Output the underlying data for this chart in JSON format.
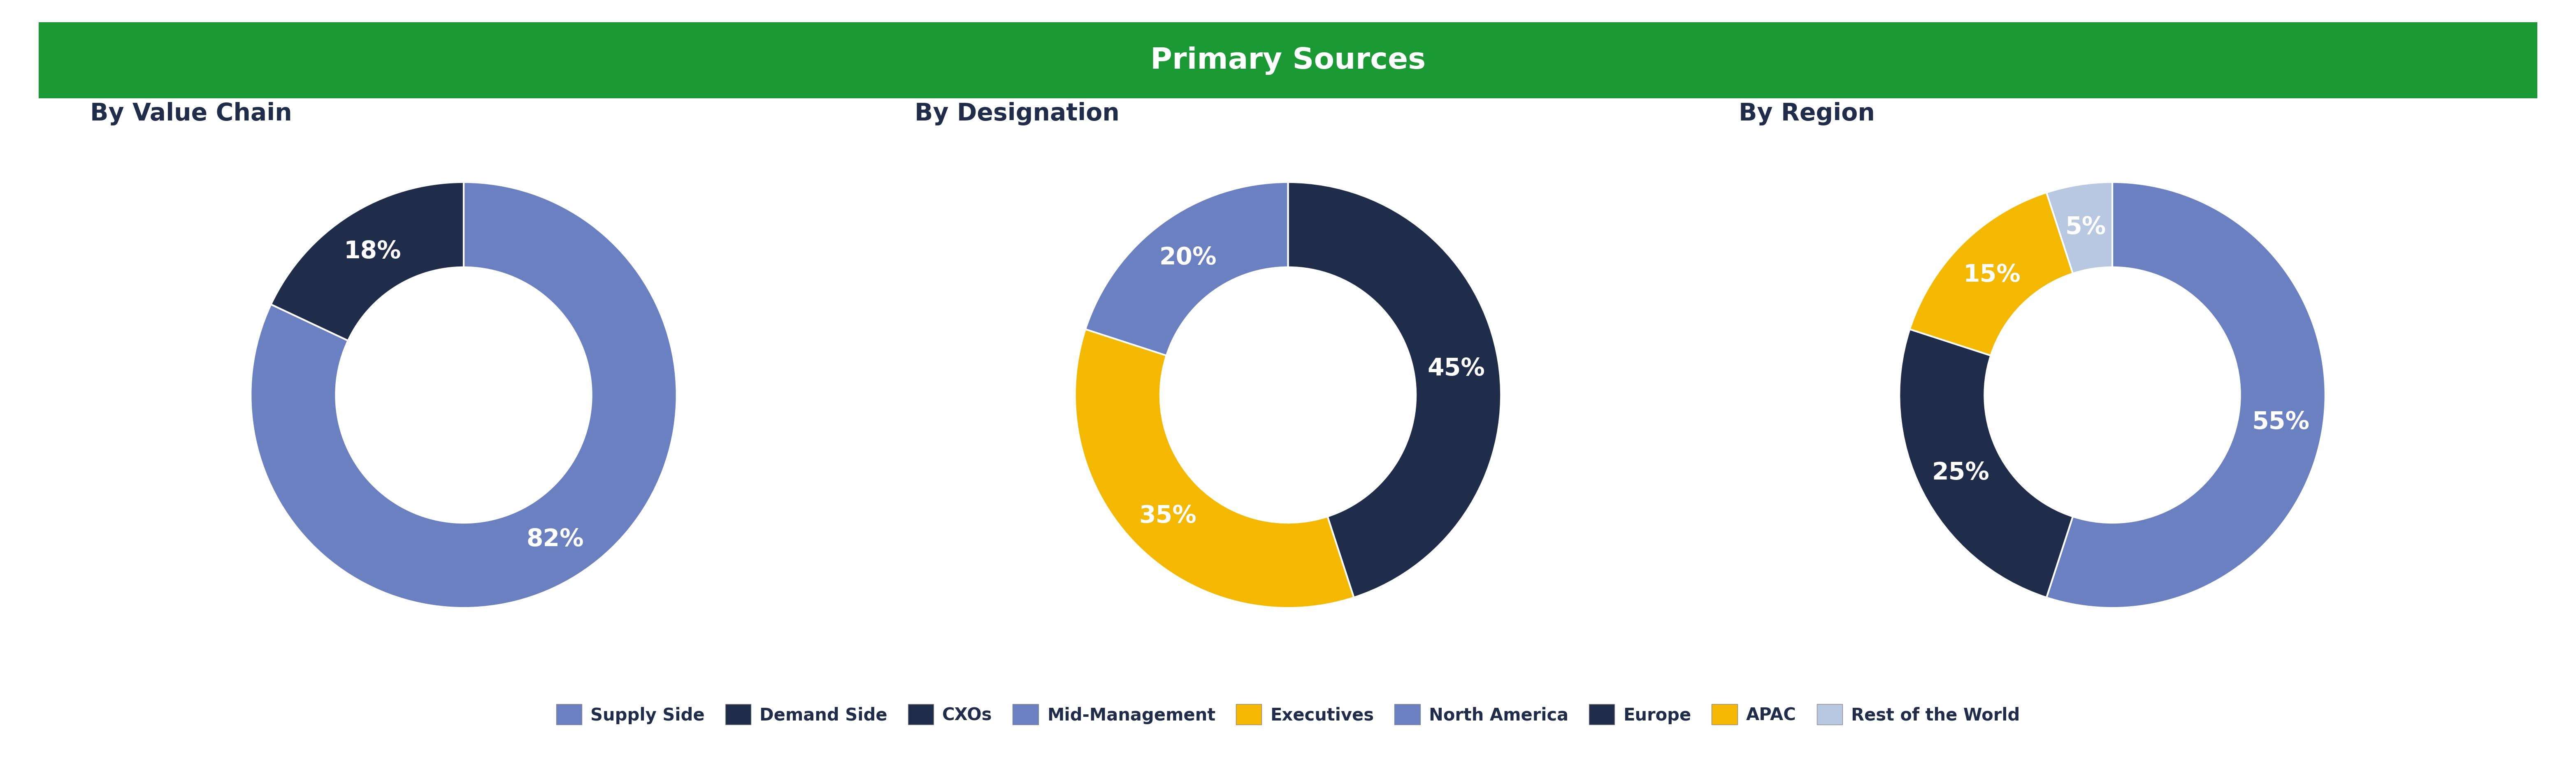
{
  "title": "Primary Sources",
  "title_bg_color": "#1a9934",
  "title_text_color": "#ffffff",
  "background_color": "#ffffff",
  "chart_bg_color": "#ffffff",
  "subtitle_color": "#1f2d4a",
  "chart1_title": "By Value Chain",
  "chart1_values": [
    82,
    18
  ],
  "chart1_labels": [
    "82%",
    "18%"
  ],
  "chart1_colors": [
    "#6b80c0",
    "#1f2d4a"
  ],
  "chart2_title": "By Designation",
  "chart2_values": [
    45,
    35,
    20
  ],
  "chart2_labels": [
    "45%",
    "35%",
    "20%"
  ],
  "chart2_colors": [
    "#1f2d4a",
    "#f5b800",
    "#6b80c0"
  ],
  "chart3_title": "By Region",
  "chart3_values": [
    55,
    25,
    15,
    5
  ],
  "chart3_labels": [
    "55%",
    "25%",
    "15%",
    "5%"
  ],
  "chart3_colors": [
    "#6b80c0",
    "#1f2d4a",
    "#f5b800",
    "#b8c8e0"
  ],
  "legend_items": [
    [
      "Supply Side",
      "#6b80c0"
    ],
    [
      "Demand Side",
      "#1f2d4a"
    ],
    [
      "CXOs",
      "#1f2d4a"
    ],
    [
      "Mid-Management",
      "#6b80c0"
    ],
    [
      "Executives",
      "#f5b800"
    ],
    [
      "North America",
      "#6b80c0"
    ],
    [
      "Europe",
      "#1f2d4a"
    ],
    [
      "APAC",
      "#f5b800"
    ],
    [
      "Rest of the World",
      "#b8c8e0"
    ]
  ],
  "wedge_label_color": "#ffffff",
  "wedge_label_fontsize": 42,
  "subtitle_fontsize": 42,
  "title_fontsize": 52,
  "legend_fontsize": 30,
  "donut_width": 0.4,
  "edge_color": "#ffffff",
  "edge_linewidth": 3
}
